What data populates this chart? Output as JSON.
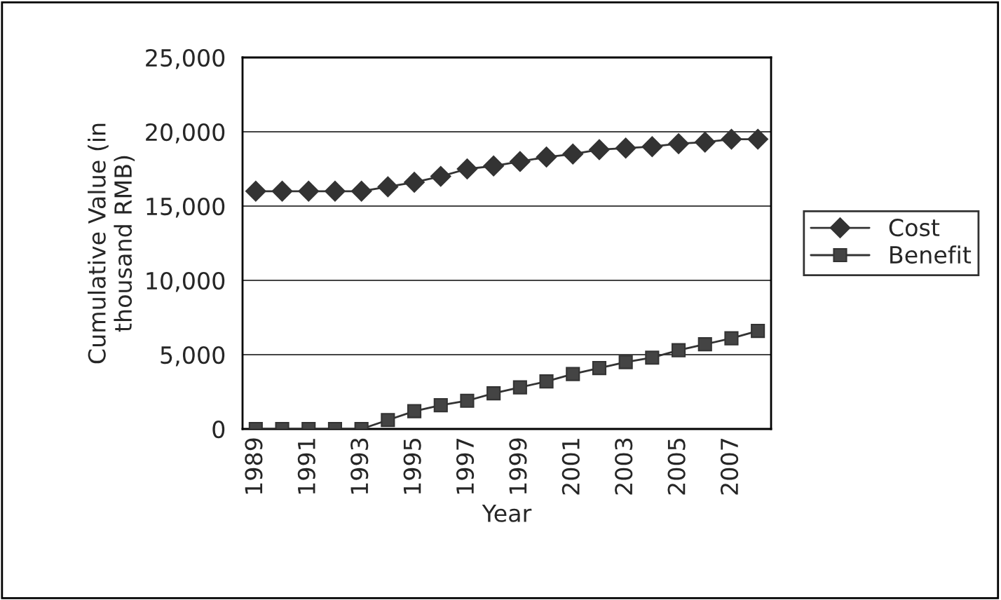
{
  "chart_data": {
    "type": "line",
    "xlabel": "Year",
    "ylabel": "Cumulative Value (in\nthousand RMB)",
    "categories": [
      "1989",
      null,
      "1991",
      null,
      "1993",
      null,
      "1995",
      null,
      "1997",
      null,
      "1999",
      null,
      "2001",
      null,
      "2003",
      null,
      "2005",
      null,
      "2007",
      null
    ],
    "series": [
      {
        "name": "Cost",
        "color": "#333333",
        "marker": "diamond",
        "values": [
          16000,
          16000,
          16000,
          16000,
          16000,
          16300,
          16600,
          17000,
          17500,
          17700,
          18000,
          18300,
          18500,
          18800,
          18900,
          19000,
          19200,
          19300,
          19500,
          19500
        ]
      },
      {
        "name": "Benefit",
        "color": "#333333",
        "marker": "square",
        "values": [
          0,
          0,
          0,
          0,
          0,
          600,
          1200,
          1600,
          1900,
          2400,
          2800,
          3200,
          3700,
          4100,
          4500,
          4800,
          5300,
          5700,
          6100,
          6600
        ]
      }
    ],
    "ylim": [
      0,
      25000
    ],
    "yticks": [
      0,
      {
        "value": 5000,
        "label": "5,000"
      },
      {
        "value": 10000,
        "label": "10,000"
      },
      {
        "value": 15000,
        "label": "15,000"
      },
      {
        "value": 20000,
        "label": "20,000"
      },
      {
        "value": 25000,
        "label": "25,000"
      }
    ],
    "grid": "y",
    "legend": "right",
    "line_style": "solid"
  }
}
